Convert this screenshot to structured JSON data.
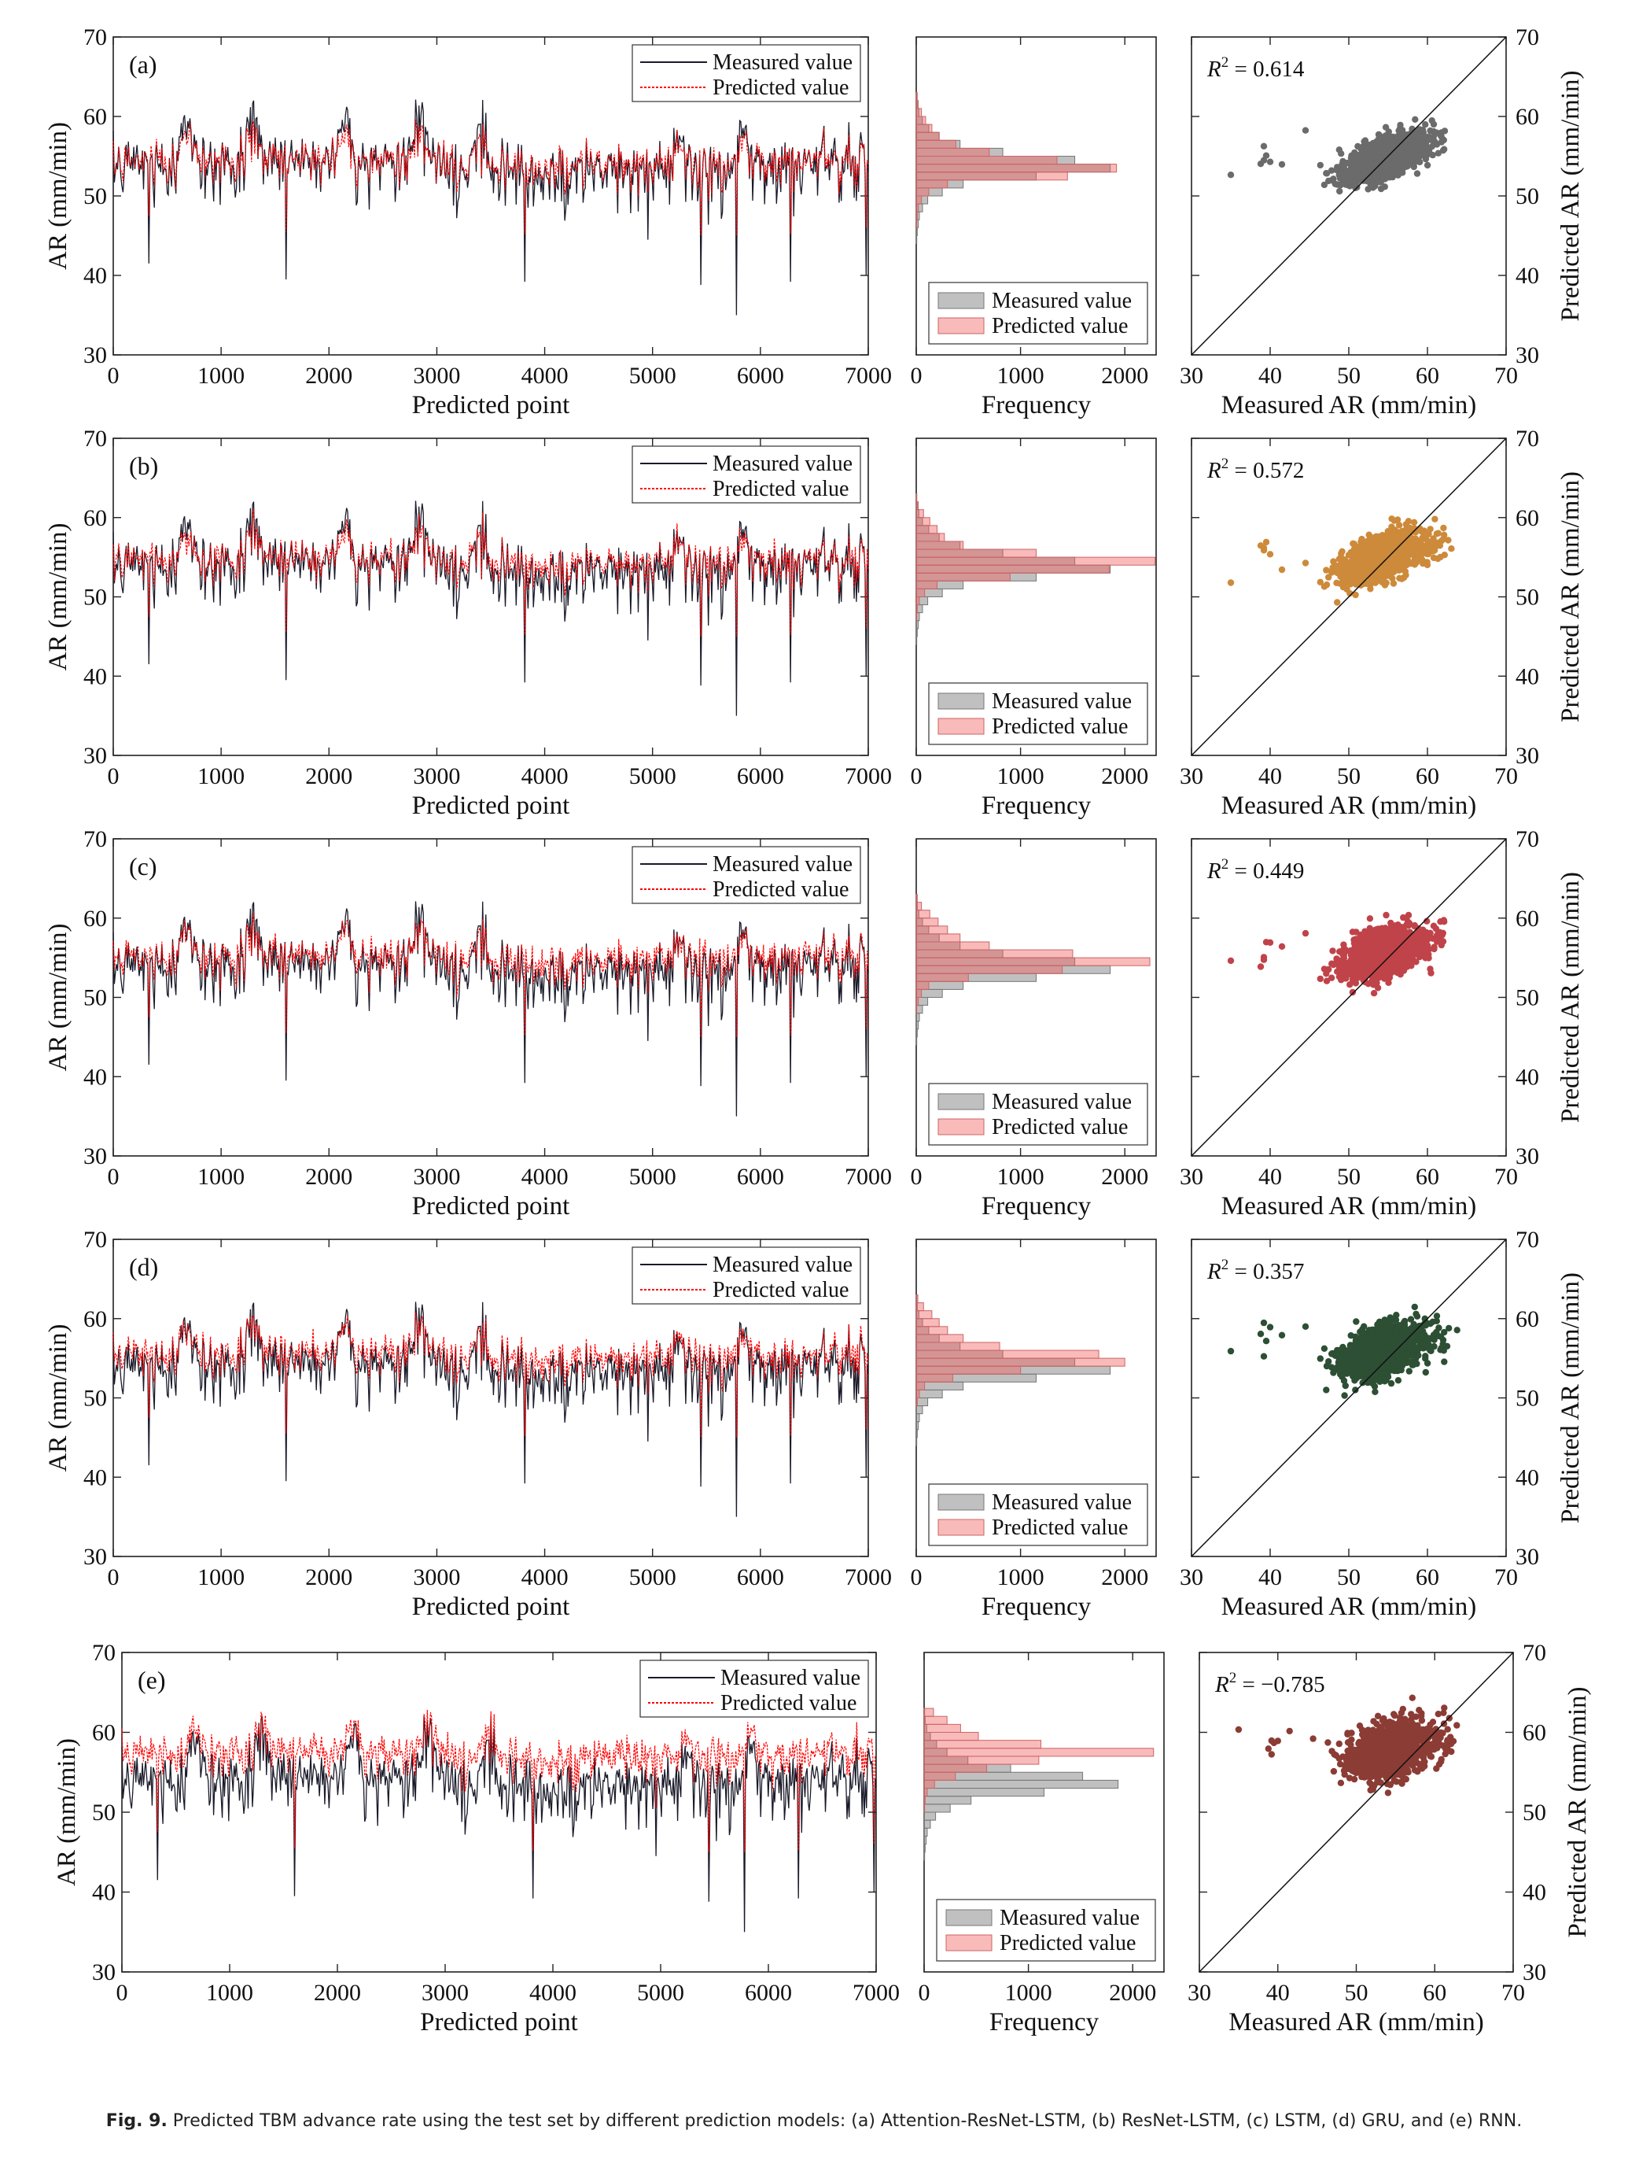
{
  "chart_data": {
    "type": "figure",
    "panels": [
      {
        "label": "(a)",
        "r2_label": "R",
        "r2_value": "= 0.614",
        "scatter_color": "#6b6b6b"
      },
      {
        "label": "(b)",
        "r2_label": "R",
        "r2_value": "= 0.572",
        "scatter_color": "#cd8a3a"
      },
      {
        "label": "(c)",
        "r2_label": "R",
        "r2_value": "= 0.449",
        "scatter_color": "#c0434a"
      },
      {
        "label": "(d)",
        "r2_label": "R",
        "r2_value": "= 0.357",
        "scatter_color": "#2d4f34"
      },
      {
        "label": "(e)",
        "r2_label": "R",
        "r2_value": "= −0.785",
        "scatter_color": "#8b3c35"
      }
    ],
    "line_chart": {
      "type": "line",
      "xlabel": "Predicted point",
      "ylabel": "AR (mm/min)",
      "xlim": [
        0,
        7000
      ],
      "ylim": [
        30,
        70
      ],
      "xticks": [
        "0",
        "1000",
        "2000",
        "3000",
        "4000",
        "5000",
        "6000",
        "7000"
      ],
      "yticks": [
        "30",
        "40",
        "50",
        "60",
        "70"
      ],
      "legend": [
        "Measured value",
        "Predicted value"
      ],
      "legend_position": "top-right",
      "measured_color": "#1a1a2a",
      "predicted_color": "#ff0000",
      "series_summary": {
        "measured_mean_approx": 54.5,
        "dip_points": [
          [
            330,
            41.5
          ],
          [
            1600,
            39.5
          ],
          [
            3820,
            39.2
          ],
          [
            4960,
            44.5
          ],
          [
            5450,
            38.8
          ],
          [
            5780,
            35
          ],
          [
            6280,
            39.2
          ],
          [
            6980,
            40
          ]
        ],
        "peak_points": [
          [
            680,
            61
          ],
          [
            1300,
            62
          ],
          [
            2150,
            61.5
          ],
          [
            2850,
            62.8
          ],
          [
            3400,
            61.5
          ],
          [
            5250,
            59.5
          ],
          [
            5850,
            59.5
          ]
        ]
      },
      "predicted_offset_by_panel": [
        0,
        0.3,
        0.7,
        1.1,
        3.0
      ]
    },
    "histogram": {
      "type": "bar",
      "orientation": "horizontal",
      "xlabel": "Frequency",
      "xlim": [
        0,
        2300
      ],
      "xticks": [
        "0",
        "1000",
        "2000"
      ],
      "bin_edges": [
        44,
        45,
        46,
        47,
        48,
        49,
        50,
        51,
        52,
        53,
        54,
        55,
        56,
        57,
        58,
        59,
        60,
        61,
        62,
        63
      ],
      "legend": [
        "Measured value",
        "Predicted value"
      ],
      "legend_position": "bottom-right",
      "measured_counts": [
        5,
        10,
        20,
        30,
        60,
        110,
        250,
        450,
        1150,
        1860,
        1520,
        830,
        420,
        220,
        120,
        60,
        25,
        10,
        5
      ],
      "predicted_counts_by_panel": [
        [
          0,
          0,
          5,
          10,
          20,
          50,
          120,
          300,
          1450,
          1920,
          1350,
          700,
          380,
          220,
          150,
          90,
          50,
          20,
          10
        ],
        [
          0,
          0,
          0,
          5,
          10,
          30,
          80,
          200,
          900,
          1850,
          2290,
          1150,
          450,
          270,
          200,
          130,
          70,
          20,
          5
        ],
        [
          0,
          0,
          0,
          0,
          5,
          20,
          50,
          120,
          500,
          1400,
          2240,
          1500,
          700,
          420,
          300,
          210,
          130,
          50,
          10
        ],
        [
          0,
          0,
          0,
          0,
          0,
          10,
          30,
          80,
          350,
          1000,
          2000,
          1750,
          800,
          450,
          300,
          220,
          150,
          70,
          15
        ],
        [
          0,
          0,
          0,
          0,
          0,
          0,
          5,
          10,
          30,
          100,
          300,
          600,
          1100,
          2200,
          1120,
          520,
          350,
          220,
          90
        ]
      ]
    },
    "scatter": {
      "type": "scatter",
      "xlabel": "Measured AR (mm/min)",
      "ylabel": "Predicted AR (mm/min)",
      "xlim": [
        30,
        70
      ],
      "ylim": [
        30,
        70
      ],
      "xticks": [
        "30",
        "40",
        "50",
        "60",
        "70"
      ],
      "yticks": [
        "30",
        "40",
        "50",
        "60",
        "70"
      ],
      "reference_line": "y = x",
      "slope_by_panel": [
        0.35,
        0.32,
        0.27,
        0.24,
        0.22
      ],
      "pred_shift_by_panel": [
        0,
        0.3,
        0.7,
        1.1,
        3.0
      ],
      "noise_by_panel": [
        1.2,
        1.3,
        1.4,
        1.5,
        1.6
      ]
    }
  },
  "caption": {
    "bold": "Fig. 9.",
    "text": "Predicted TBM advance rate using the test set by different prediction models: (a) Attention-ResNet-LSTM, (b) ResNet-LSTM, (c) LSTM, (d) GRU, and (e) RNN."
  }
}
